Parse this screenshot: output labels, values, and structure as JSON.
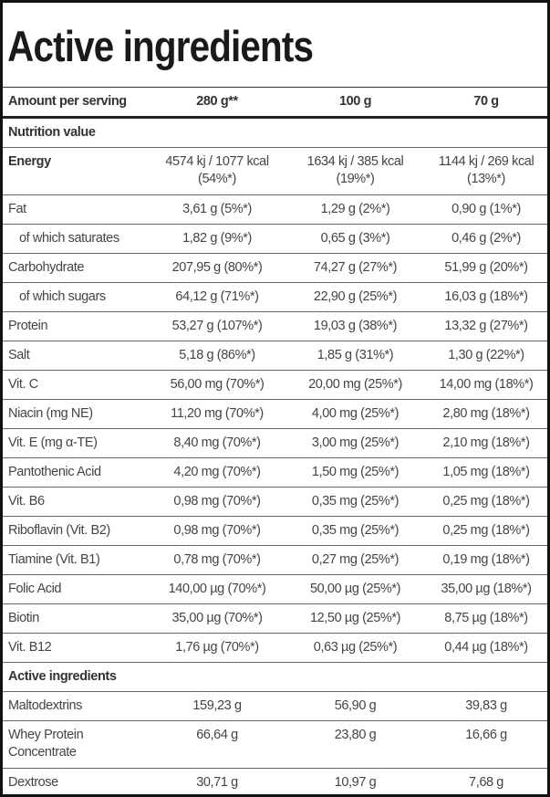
{
  "title": "Active ingredients",
  "header": {
    "label": "Amount per serving",
    "cols": [
      "280 g**",
      "100 g",
      "70 g"
    ]
  },
  "sections": {
    "nutrition": "Nutrition value",
    "active": "Active ingredients"
  },
  "nutrition_rows": [
    {
      "name": "Energy",
      "bold": true,
      "values": [
        "4574 kj / 1077 kcal (54%*)",
        "1634 kj / 385 kcal (19%*)",
        "1144 kj / 269 kcal (13%*)"
      ]
    },
    {
      "name": "Fat",
      "values": [
        "3,61 g (5%*)",
        "1,29 g (2%*)",
        "0,90 g (1%*)"
      ]
    },
    {
      "name": "of which saturates",
      "sub": true,
      "values": [
        "1,82 g (9%*)",
        "0,65 g (3%*)",
        "0,46 g (2%*)"
      ]
    },
    {
      "name": "Carbohydrate",
      "values": [
        "207,95 g (80%*)",
        "74,27 g (27%*)",
        "51,99 g (20%*)"
      ]
    },
    {
      "name": "of which sugars",
      "sub": true,
      "values": [
        "64,12 g (71%*)",
        "22,90 g (25%*)",
        "16,03 g (18%*)"
      ]
    },
    {
      "name": "Protein",
      "values": [
        "53,27 g (107%*)",
        "19,03 g (38%*)",
        "13,32 g (27%*)"
      ]
    },
    {
      "name": "Salt",
      "values": [
        "5,18 g (86%*)",
        "1,85 g (31%*)",
        "1,30 g (22%*)"
      ]
    },
    {
      "name": "Vit. C",
      "values": [
        "56,00 mg (70%*)",
        "20,00 mg (25%*)",
        "14,00 mg (18%*)"
      ]
    },
    {
      "name": "Niacin (mg NE)",
      "values": [
        "11,20 mg (70%*)",
        "4,00 mg (25%*)",
        "2,80 mg (18%*)"
      ]
    },
    {
      "name": "Vit. E (mg α-TE)",
      "values": [
        "8,40 mg (70%*)",
        "3,00 mg (25%*)",
        "2,10 mg (18%*)"
      ]
    },
    {
      "name": "Pantothenic Acid",
      "values": [
        "4,20 mg (70%*)",
        "1,50 mg (25%*)",
        "1,05 mg (18%*)"
      ]
    },
    {
      "name": "Vit. B6",
      "values": [
        "0,98 mg (70%*)",
        "0,35 mg (25%*)",
        "0,25 mg (18%*)"
      ]
    },
    {
      "name": "Riboflavin (Vit. B2)",
      "values": [
        "0,98 mg (70%*)",
        "0,35 mg (25%*)",
        "0,25 mg (18%*)"
      ]
    },
    {
      "name": "Tiamine (Vit. B1)",
      "values": [
        "0,78 mg (70%*)",
        "0,27 mg (25%*)",
        "0,19 mg (18%*)"
      ]
    },
    {
      "name": "Folic Acid",
      "values": [
        "140,00 µg (70%*)",
        "50,00 µg (25%*)",
        "35,00 µg (18%*)"
      ]
    },
    {
      "name": "Biotin",
      "values": [
        "35,00 µg (70%*)",
        "12,50 µg (25%*)",
        "8,75 µg (18%*)"
      ]
    },
    {
      "name": "Vit. B12",
      "values": [
        "1,76 µg (70%*)",
        "0,63 µg (25%*)",
        "0,44 µg (18%*)"
      ]
    }
  ],
  "active_rows": [
    {
      "name": "Maltodextrins",
      "values": [
        "159,23 g",
        "56,90 g",
        "39,83 g"
      ]
    },
    {
      "name": "Whey Protein Concentrate",
      "values": [
        "66,64 g",
        "23,80 g",
        "16,66 g"
      ]
    },
    {
      "name": "Dextrose",
      "values": [
        "30,71 g",
        "10,97 g",
        "7,68 g"
      ]
    }
  ]
}
